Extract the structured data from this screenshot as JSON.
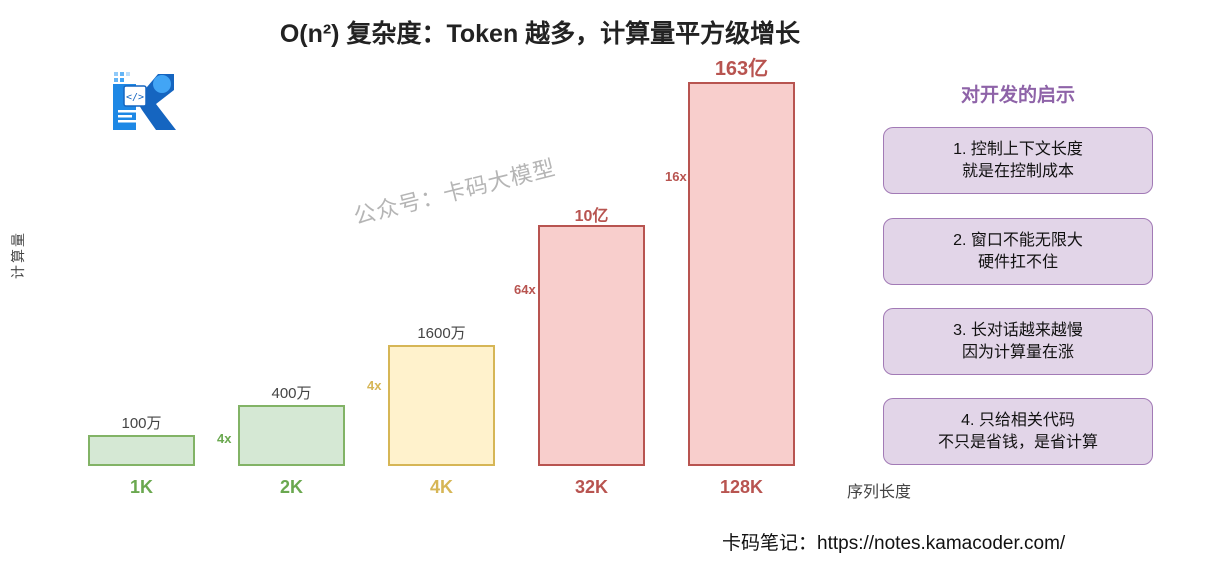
{
  "title": "O(n²) 复杂度：Token 越多，计算量平方级增长",
  "watermark": "公众号：卡码大模型",
  "chart_data": {
    "type": "bar",
    "title": "O(n²) 复杂度：Token 越多，计算量平方级增长",
    "xlabel": "序列长度",
    "ylabel": "计算量",
    "categories": [
      "1K",
      "2K",
      "4K",
      "32K",
      "128K"
    ],
    "values": [
      1000000,
      4000000,
      16000000,
      1000000000,
      16300000000
    ],
    "value_labels": [
      "100万",
      "400万",
      "1600万",
      "10亿",
      "163亿"
    ],
    "multipliers": [
      "",
      "4x",
      "4x",
      "64x",
      "16x"
    ],
    "colors": {
      "fill": [
        "#d5e8d4",
        "#d5e8d4",
        "#fff2cc",
        "#f8cecc",
        "#f8cecc"
      ],
      "stroke": [
        "#82b366",
        "#82b366",
        "#d6b656",
        "#b85450",
        "#b85450"
      ],
      "text": [
        "#6aa84f",
        "#6aa84f",
        "#d6b656",
        "#b85450",
        "#b85450"
      ]
    },
    "grid": false,
    "legend": "none"
  },
  "panel": {
    "title": "对开发的启示",
    "cards": [
      {
        "line1": "1. 控制上下文长度",
        "line2": "就是在控制成本"
      },
      {
        "line1": "2. 窗口不能无限大",
        "line2": "硬件扛不住"
      },
      {
        "line1": "3. 长对话越来越慢",
        "line2": "因为计算量在涨"
      },
      {
        "line1": "4. 只给相关代码",
        "line2": "不只是省钱，是省计算"
      }
    ]
  },
  "footer": "卡码笔记：https://notes.kamacoder.com/",
  "logo": {
    "name": "kamacoder-logo-icon",
    "colors": [
      "#1e88e5",
      "#64b5f6",
      "#ffffff"
    ]
  }
}
